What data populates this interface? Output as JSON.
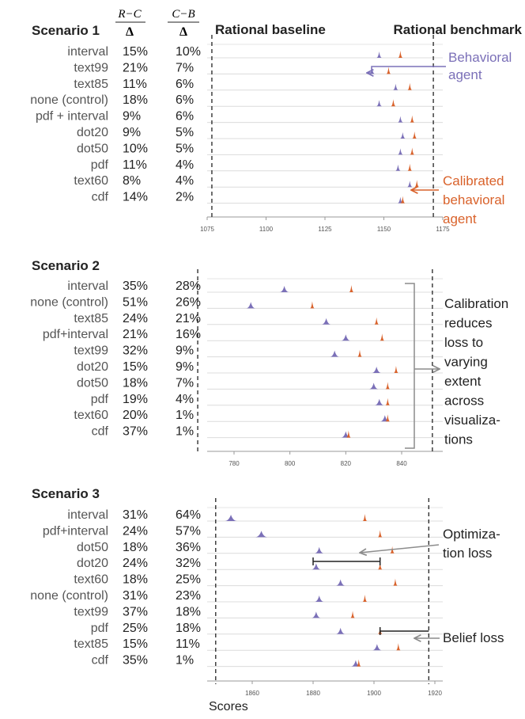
{
  "header": {
    "rc_numerator": "R−C",
    "cb_numerator": "C−B",
    "denominator": "Δ",
    "baseline_label": "Rational baseline",
    "benchmark_label": "Rational benchmark"
  },
  "colors": {
    "behavioral": "#7b70b8",
    "calibrated": "#d9622b",
    "gray": "#8c8c8c"
  },
  "xaxis_label": "Scores",
  "chart_data": [
    {
      "type": "scatter",
      "title": "Scenario 1",
      "xlim": [
        1075,
        1175
      ],
      "xticks": [
        1075,
        1100,
        1125,
        1150,
        1175
      ],
      "baseline": 1077,
      "benchmark": 1171,
      "rows": [
        {
          "label": "interval",
          "rc": "15%",
          "cb": "10%",
          "behavioral": 1148,
          "calibrated": 1157
        },
        {
          "label": "text99",
          "rc": "21%",
          "cb": "7%",
          "behavioral": 1145,
          "calibrated": 1152
        },
        {
          "label": "text85",
          "rc": "11%",
          "cb": "6%",
          "behavioral": 1155,
          "calibrated": 1161
        },
        {
          "label": "none (control)",
          "rc": "18%",
          "cb": "6%",
          "behavioral": 1148,
          "calibrated": 1154
        },
        {
          "label": "pdf + interval",
          "rc": "9%",
          "cb": "6%",
          "behavioral": 1157,
          "calibrated": 1162
        },
        {
          "label": "dot20",
          "rc": "9%",
          "cb": "5%",
          "behavioral": 1158,
          "calibrated": 1163
        },
        {
          "label": "dot50",
          "rc": "10%",
          "cb": "5%",
          "behavioral": 1157,
          "calibrated": 1162
        },
        {
          "label": "pdf",
          "rc": "11%",
          "cb": "4%",
          "behavioral": 1156,
          "calibrated": 1161
        },
        {
          "label": "text60",
          "rc": "8%",
          "cb": "4%",
          "behavioral": 1161,
          "calibrated": 1164
        },
        {
          "label": "cdf",
          "rc": "14%",
          "cb": "2%",
          "behavioral": 1157,
          "calibrated": 1158
        }
      ],
      "annotations": [
        {
          "text": [
            "Behavioral",
            "agent"
          ],
          "series": "behavioral"
        },
        {
          "text": [
            "Calibrated",
            "behavioral",
            "agent"
          ],
          "series": "calibrated"
        }
      ]
    },
    {
      "type": "scatter",
      "title": "Scenario 2",
      "xlim": [
        765,
        855
      ],
      "xticks": [
        780,
        800,
        820,
        840
      ],
      "baseline": 767,
      "benchmark": 851,
      "rows": [
        {
          "label": "interval",
          "rc": "35%",
          "cb": "28%",
          "behavioral": 798,
          "calibrated": 822
        },
        {
          "label": "none (control)",
          "rc": "51%",
          "cb": "26%",
          "behavioral": 786,
          "calibrated": 808
        },
        {
          "label": "text85",
          "rc": "24%",
          "cb": "21%",
          "behavioral": 813,
          "calibrated": 831
        },
        {
          "label": "pdf+interval",
          "rc": "21%",
          "cb": "16%",
          "behavioral": 820,
          "calibrated": 833
        },
        {
          "label": "text99",
          "rc": "32%",
          "cb": "9%",
          "behavioral": 816,
          "calibrated": 825
        },
        {
          "label": "dot20",
          "rc": "15%",
          "cb": "9%",
          "behavioral": 831,
          "calibrated": 838
        },
        {
          "label": "dot50",
          "rc": "18%",
          "cb": "7%",
          "behavioral": 830,
          "calibrated": 835
        },
        {
          "label": "pdf",
          "rc": "19%",
          "cb": "4%",
          "behavioral": 832,
          "calibrated": 835
        },
        {
          "label": "text60",
          "rc": "20%",
          "cb": "1%",
          "behavioral": 834,
          "calibrated": 835
        },
        {
          "label": "cdf",
          "rc": "37%",
          "cb": "1%",
          "behavioral": 820,
          "calibrated": 821
        }
      ],
      "annotations": [
        {
          "text": [
            "Calibration",
            "reduces",
            "loss to",
            "varying",
            "extent",
            "across",
            "visualiza-",
            "tions"
          ]
        }
      ]
    },
    {
      "type": "scatter",
      "title": "Scenario 3",
      "xlim": [
        1845,
        1922
      ],
      "xticks": [
        1860,
        1880,
        1900,
        1920
      ],
      "baseline": 1848,
      "benchmark": 1918,
      "rows": [
        {
          "label": "interval",
          "rc": "31%",
          "cb": "64%",
          "behavioral": 1853,
          "calibrated": 1897
        },
        {
          "label": "pdf+interval",
          "rc": "24%",
          "cb": "57%",
          "behavioral": 1863,
          "calibrated": 1902
        },
        {
          "label": "dot50",
          "rc": "18%",
          "cb": "36%",
          "behavioral": 1882,
          "calibrated": 1906
        },
        {
          "label": "dot20",
          "rc": "24%",
          "cb": "32%",
          "behavioral": 1881,
          "calibrated": 1902
        },
        {
          "label": "text60",
          "rc": "18%",
          "cb": "25%",
          "behavioral": 1889,
          "calibrated": 1907
        },
        {
          "label": "none (control)",
          "rc": "31%",
          "cb": "23%",
          "behavioral": 1882,
          "calibrated": 1897
        },
        {
          "label": "text99",
          "rc": "37%",
          "cb": "18%",
          "behavioral": 1881,
          "calibrated": 1893
        },
        {
          "label": "pdf",
          "rc": "25%",
          "cb": "18%",
          "behavioral": 1889,
          "calibrated": 1902
        },
        {
          "label": "text85",
          "rc": "15%",
          "cb": "11%",
          "behavioral": 1901,
          "calibrated": 1908
        },
        {
          "label": "cdf",
          "rc": "35%",
          "cb": "1%",
          "behavioral": 1894,
          "calibrated": 1895
        }
      ],
      "annotations": [
        {
          "text": [
            "Optimiza-",
            "tion loss"
          ],
          "from": 1880,
          "to": 1902
        },
        {
          "text": [
            "Belief loss"
          ],
          "from": 1902,
          "to": 1918
        }
      ]
    }
  ]
}
